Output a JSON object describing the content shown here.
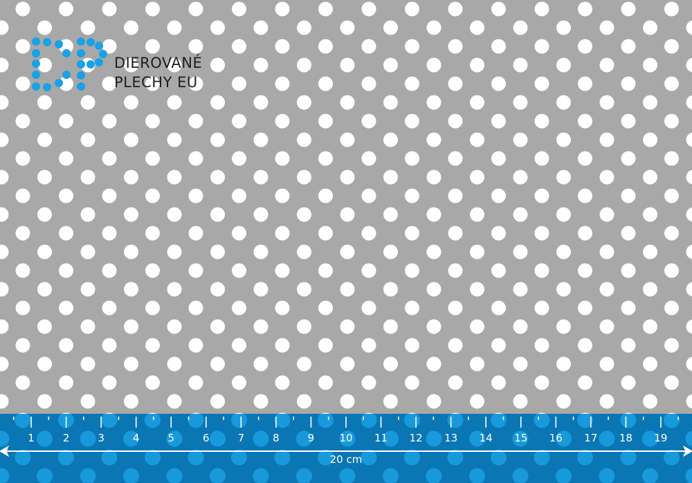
{
  "brand": {
    "logo_letters": "DP",
    "line1": "DIEROVANÉ",
    "line2": "PLECHY EU",
    "color": "#1aa1e6"
  },
  "sheet": {
    "metal_color": "#a8a8a8",
    "hole_color": "#ffffff"
  },
  "ruler": {
    "band_color": "#0b76b4",
    "hole_color": "#1799dc",
    "tick_labels": [
      "1",
      "2",
      "3",
      "4",
      "5",
      "6",
      "7",
      "8",
      "9",
      "10",
      "11",
      "12",
      "13",
      "14",
      "15",
      "16",
      "17",
      "18",
      "19"
    ],
    "total_length_label": "20 cm",
    "unit": "cm"
  }
}
